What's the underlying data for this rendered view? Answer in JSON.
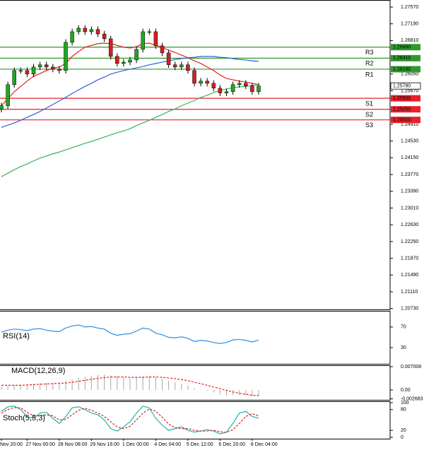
{
  "chart_data": [
    {
      "type": "candlestick",
      "categories": [
        "Nov 20:00",
        null,
        null,
        null,
        "27 Nov 00:00",
        null,
        null,
        null,
        null,
        "28 Nov 08:00",
        null,
        null,
        null,
        null,
        "29 Nov 16:00",
        null,
        null,
        null,
        null,
        "1 Dec 00:00",
        null,
        null,
        null,
        null,
        "4 Dec 04:00",
        null,
        null,
        null,
        null,
        "5 Dec 12:00",
        null,
        null,
        null,
        null,
        "6 Dec 20:00",
        null,
        null,
        null,
        null,
        "8 Dec 04:00",
        null
      ],
      "open": [
        1.2525,
        1.2533,
        1.2581,
        1.2613,
        1.2613,
        1.2605,
        1.2621,
        1.2626,
        1.2621,
        1.2616,
        1.2613,
        1.2677,
        1.2701,
        1.2709,
        1.2701,
        1.2706,
        1.2696,
        1.2685,
        1.2645,
        1.2629,
        1.2632,
        1.2637,
        1.2661,
        1.2701,
        1.2701,
        1.2669,
        1.2653,
        1.2626,
        1.2621,
        1.2626,
        1.2613,
        1.2584,
        1.2589,
        1.2584,
        1.2573,
        1.2562,
        1.2565,
        1.2581,
        1.2584,
        1.2578,
        1.2565
      ],
      "high": [
        1.254,
        1.2588,
        1.262,
        1.262,
        1.262,
        1.2628,
        1.2633,
        1.2633,
        1.2628,
        1.2623,
        1.2684,
        1.2708,
        1.2716,
        1.2716,
        1.2713,
        1.2713,
        1.2703,
        1.2692,
        1.2652,
        1.2639,
        1.2644,
        1.2668,
        1.2708,
        1.2708,
        1.2708,
        1.2676,
        1.266,
        1.2633,
        1.2633,
        1.2633,
        1.262,
        1.2596,
        1.2596,
        1.2591,
        1.258,
        1.2572,
        1.2588,
        1.2591,
        1.2591,
        1.2585,
        1.2585
      ],
      "low": [
        1.2518,
        1.2526,
        1.2574,
        1.2606,
        1.2598,
        1.2598,
        1.2614,
        1.2614,
        1.2609,
        1.2606,
        1.2606,
        1.267,
        1.2694,
        1.2694,
        1.2694,
        1.2689,
        1.2678,
        1.2638,
        1.2622,
        1.2622,
        1.2625,
        1.263,
        1.2654,
        1.2694,
        1.2662,
        1.2646,
        1.2619,
        1.2614,
        1.2614,
        1.2606,
        1.2577,
        1.2577,
        1.2577,
        1.2566,
        1.2555,
        1.2555,
        1.2558,
        1.2574,
        1.2571,
        1.2558,
        1.2558
      ],
      "close": [
        1.2533,
        1.2581,
        1.2613,
        1.2613,
        1.2605,
        1.2621,
        1.2626,
        1.2621,
        1.2616,
        1.2613,
        1.2677,
        1.2701,
        1.2709,
        1.2701,
        1.2706,
        1.2696,
        1.2685,
        1.2645,
        1.2629,
        1.2632,
        1.2637,
        1.2661,
        1.2701,
        1.2701,
        1.2669,
        1.2653,
        1.2626,
        1.2621,
        1.2626,
        1.2613,
        1.2584,
        1.2589,
        1.2584,
        1.2573,
        1.2562,
        1.2565,
        1.2581,
        1.2584,
        1.2578,
        1.2565,
        1.2578
      ],
      "up_color": "#1fa81f",
      "down_color": "#d42020",
      "series": [
        {
          "color": "#e8201e",
          "values": [
            1.2533,
            1.2549,
            1.2565,
            1.2577,
            1.2589,
            1.26,
            1.2606,
            1.2613,
            1.2618,
            1.2621,
            1.2629,
            1.2645,
            1.2656,
            1.2666,
            1.267,
            1.2674,
            1.2675,
            1.2674,
            1.267,
            1.2666,
            1.2664,
            1.2667,
            1.2674,
            1.2675,
            1.267,
            1.2666,
            1.2659,
            1.2654,
            1.2648,
            1.2642,
            1.2635,
            1.2629,
            1.2621,
            1.2613,
            1.2603,
            1.2595,
            1.2592,
            1.2589,
            1.2587,
            1.2584,
            1.2581
          ]
        },
        {
          "color": "#3060e0",
          "values": [
            1.2484,
            1.2489,
            1.2494,
            1.25,
            1.2507,
            1.2513,
            1.252,
            1.2528,
            1.2536,
            1.2544,
            1.2552,
            1.2561,
            1.2569,
            1.2577,
            1.2584,
            1.2592,
            1.2598,
            1.2605,
            1.2609,
            1.2613,
            1.2616,
            1.2619,
            1.2622,
            1.2626,
            1.2629,
            1.2632,
            1.2635,
            1.2638,
            1.264,
            1.2642,
            1.2643,
            1.2645,
            1.2645,
            1.2645,
            1.2643,
            1.2642,
            1.264,
            1.2638,
            1.2637,
            1.2635,
            1.2634
          ]
        },
        {
          "color": "#3cb060",
          "values": [
            1.2372,
            1.238,
            1.2388,
            1.2395,
            1.2401,
            1.2408,
            1.2414,
            1.2419,
            1.2424,
            1.2428,
            1.2433,
            1.2438,
            1.2443,
            1.2448,
            1.2452,
            1.2457,
            1.2462,
            1.2467,
            1.2472,
            1.2476,
            1.2481,
            1.2488,
            1.2494,
            1.25,
            1.2507,
            1.2513,
            1.252,
            1.2526,
            1.2533,
            1.2539,
            1.2545,
            1.2552,
            1.2557,
            1.2563,
            1.2568,
            1.2571,
            1.2574,
            1.2576,
            1.2577,
            1.2579,
            1.2581
          ]
        }
      ],
      "levels": [
        {
          "name": "R3",
          "value": 1.2666,
          "label": "1.26660",
          "color": "#2e9a2e"
        },
        {
          "name": "R2",
          "value": 1.2641,
          "label": "1.26410",
          "color": "#2e9a2e"
        },
        {
          "name": "R1",
          "value": 1.2616,
          "label": "1.26160",
          "color": "#2e9a2e"
        },
        {
          "name": "S1",
          "value": 1.255,
          "label": "1.25500",
          "color": "#e8202a"
        },
        {
          "name": "S2",
          "value": 1.2525,
          "label": "1.25250",
          "color": "#e8202a"
        },
        {
          "name": "S3",
          "value": 1.2501,
          "label": "1.25010",
          "color": "#e8202a"
        }
      ],
      "last_price": {
        "value": 1.2578,
        "label": "1.25780"
      },
      "ylim": [
        1.2071,
        1.2773
      ],
      "yticks": [
        {
          "value": 1.2757,
          "label": "1.27570"
        },
        {
          "value": 1.2719,
          "label": "1.27190"
        },
        {
          "value": 1.2681,
          "label": "1.26810"
        },
        {
          "value": 1.2605,
          "label": "1.26050"
        },
        {
          "value": 1.2567,
          "label": "1.25670"
        },
        {
          "value": 1.2491,
          "label": "1.24910"
        },
        {
          "value": 1.2453,
          "label": "1.24530"
        },
        {
          "value": 1.2415,
          "label": "1.24150"
        },
        {
          "value": 1.2377,
          "label": "1.23770"
        },
        {
          "value": 1.2339,
          "label": "1.23390"
        },
        {
          "value": 1.2301,
          "label": "1.23010"
        },
        {
          "value": 1.2263,
          "label": "1.22630"
        },
        {
          "value": 1.2225,
          "label": "1.22250"
        },
        {
          "value": 1.2187,
          "label": "1.21870"
        },
        {
          "value": 1.2149,
          "label": "1.21490"
        },
        {
          "value": 1.2111,
          "label": "1.21110"
        },
        {
          "value": 1.2073,
          "label": "1.20730"
        }
      ]
    },
    {
      "type": "line",
      "label": "RSI(14)",
      "series": [
        {
          "color": "#2f8fe0",
          "values": [
            60,
            64,
            66,
            65,
            63,
            66,
            67,
            64,
            62,
            61,
            68,
            72,
            74,
            70,
            71,
            68,
            66,
            58,
            54,
            56,
            57,
            62,
            68,
            66,
            58,
            55,
            50,
            49,
            51,
            48,
            42,
            44,
            43,
            40,
            38,
            40,
            45,
            46,
            44,
            41,
            45
          ]
        }
      ],
      "ylim": [
        0,
        100
      ],
      "yticks": [
        70,
        30
      ]
    },
    {
      "type": "macd",
      "label": "MACD(12,26,9)",
      "histogram": {
        "color": "#a8a8a8",
        "values": [
          0.001,
          0.0012,
          0.0014,
          0.0015,
          0.0017,
          0.0019,
          0.002,
          0.0021,
          0.0022,
          0.0023,
          0.0027,
          0.0032,
          0.0037,
          0.004,
          0.0043,
          0.0045,
          0.0046,
          0.0044,
          0.004,
          0.0037,
          0.0035,
          0.0036,
          0.004,
          0.0041,
          0.0038,
          0.0034,
          0.0028,
          0.0023,
          0.0019,
          0.0014,
          0.0006,
          0.0001,
          -0.0003,
          -0.0008,
          -0.0013,
          -0.0016,
          -0.0016,
          -0.0016,
          -0.0016,
          -0.0018,
          -0.0017
        ]
      },
      "signal": {
        "color": "#e02020",
        "dash": true,
        "values": [
          0.0014,
          0.0014,
          0.0014,
          0.0014,
          0.0015,
          0.0016,
          0.0017,
          0.0018,
          0.0019,
          0.002,
          0.0021,
          0.0023,
          0.0026,
          0.0029,
          0.0032,
          0.0035,
          0.0037,
          0.0039,
          0.0039,
          0.0039,
          0.0038,
          0.0038,
          0.0038,
          0.0039,
          0.0039,
          0.0038,
          0.0036,
          0.0034,
          0.0031,
          0.0028,
          0.0023,
          0.0019,
          0.0014,
          0.0009,
          0.0004,
          -0.0001,
          -0.0006,
          -0.001,
          -0.0013,
          -0.0016,
          -0.0017
        ]
      },
      "ylim": [
        -0.00297,
        0.00743
      ],
      "yticks": [
        0.007008,
        {
          "value": 0,
          "label": "0.00"
        },
        -0.002683
      ]
    },
    {
      "type": "line",
      "label": "Stoch(5,5,3)",
      "series": [
        {
          "color": "#20b2aa",
          "values": [
            75,
            88,
            90,
            80,
            60,
            55,
            70,
            72,
            55,
            40,
            60,
            85,
            88,
            80,
            70,
            65,
            50,
            25,
            18,
            30,
            45,
            70,
            90,
            85,
            55,
            35,
            20,
            25,
            30,
            20,
            15,
            18,
            22,
            18,
            10,
            15,
            40,
            70,
            75,
            60,
            55
          ]
        },
        {
          "color": "#e02020",
          "dash": true,
          "values": [
            70,
            80,
            86,
            85,
            72,
            62,
            62,
            65,
            62,
            50,
            52,
            65,
            78,
            84,
            78,
            70,
            60,
            45,
            30,
            25,
            32,
            50,
            70,
            82,
            75,
            58,
            38,
            28,
            25,
            25,
            20,
            18,
            18,
            20,
            16,
            14,
            22,
            40,
            60,
            68,
            62
          ]
        }
      ],
      "ylim": [
        0,
        100
      ],
      "yticks": [
        100,
        80,
        20,
        0
      ]
    }
  ]
}
